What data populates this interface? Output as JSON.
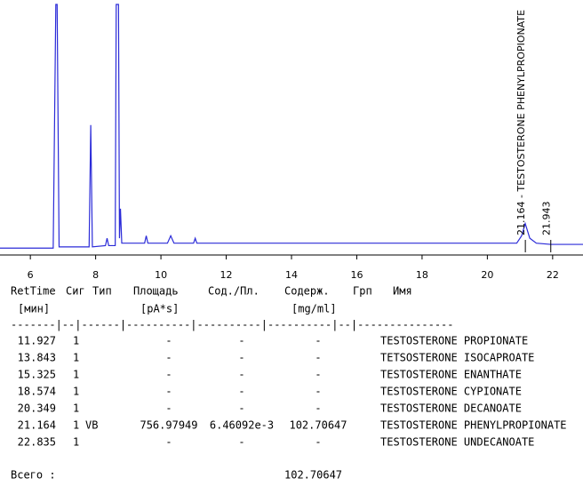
{
  "chart_data": {
    "type": "line",
    "x": [
      5.07,
      6.7,
      6.78,
      6.82,
      6.88,
      7.8,
      7.85,
      7.9,
      8.3,
      8.35,
      8.4,
      8.6,
      8.63,
      8.7,
      8.73,
      8.76,
      8.8,
      9.5,
      9.55,
      9.6,
      10.2,
      10.3,
      10.4,
      11.0,
      11.05,
      11.1,
      20.9,
      21.05,
      21.16,
      21.3,
      21.5,
      21.94,
      22.93
    ],
    "series": [
      {
        "color": "#2b2bd8",
        "values": [
          1,
          1,
          100,
          100,
          1.5,
          1.5,
          51,
          1.5,
          2,
          5,
          2,
          2,
          100,
          100,
          5,
          17,
          3,
          3,
          6,
          3,
          3,
          6,
          3,
          3,
          5,
          3,
          3,
          6,
          11,
          5,
          3,
          2.5,
          2.5
        ]
      }
    ],
    "xlim": [
      5.07,
      22.93
    ],
    "xticks": [
      6,
      8,
      10,
      12,
      14,
      16,
      18,
      20,
      22
    ],
    "ylim": [
      0,
      100
    ],
    "annotations": [
      {
        "x": 21.164,
        "text": "21.164 - TESTOSTERONE PHENYLPROPIONATE"
      },
      {
        "x": 21.943,
        "text": "21.943"
      }
    ]
  },
  "table": {
    "header": [
      "RetTime",
      "Сиг",
      "Тип",
      "Площадь",
      "Сод./Пл.",
      "Содерж.",
      "Грп",
      "Имя"
    ],
    "units": [
      "[мин]",
      "[pA*s]",
      "[mg/ml]"
    ],
    "separator": "-------|--|------|----------|----------|----------|--|---------------",
    "rows": [
      {
        "time": "11.927",
        "sig": "1",
        "area": "-",
        "ratio": "-",
        "amount": "-",
        "name": "TESTOSTERONE PROPIONATE"
      },
      {
        "time": "13.843",
        "sig": "1",
        "area": "-",
        "ratio": "-",
        "amount": "-",
        "name": "TETSOSTERONE ISOCAPROATE"
      },
      {
        "time": "15.325",
        "sig": "1",
        "area": "-",
        "ratio": "-",
        "amount": "-",
        "name": "TESTOSTERONE ENANTHATE"
      },
      {
        "time": "18.574",
        "sig": "1",
        "area": "-",
        "ratio": "-",
        "amount": "-",
        "name": "TESTOSTERONE CYPIONATE"
      },
      {
        "time": "20.349",
        "sig": "1",
        "area": "-",
        "ratio": "-",
        "amount": "-",
        "name": "TESTOSTERONE DECANOATE"
      },
      {
        "time": "21.164",
        "sig": "1",
        "type": "VB",
        "area": "756.97949",
        "ratio": "6.46092e-3",
        "amount": "102.70647",
        "name": "TESTOSTERONE PHENYLPROPIONATE"
      },
      {
        "time": "22.835",
        "sig": "1",
        "area": "-",
        "ratio": "-",
        "amount": "-",
        "name": "TESTOSTERONE UNDECANOATE"
      }
    ],
    "total_label": "Всего :",
    "total_value": "102.70647"
  }
}
